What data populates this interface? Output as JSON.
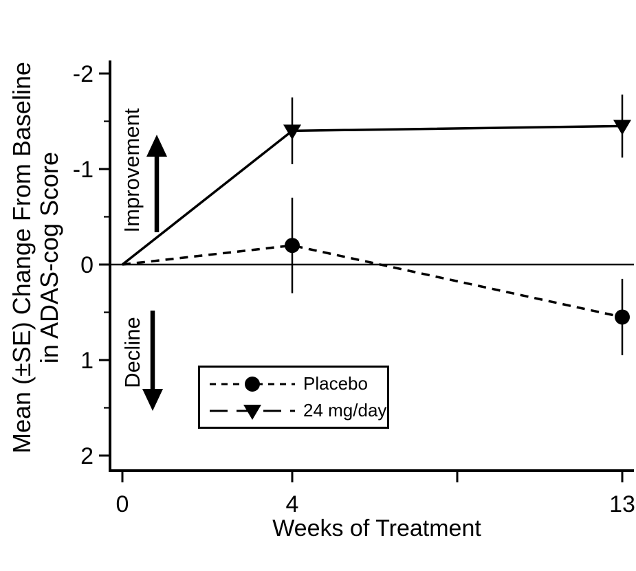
{
  "colors": {
    "foreground": "#000000",
    "background": "#ffffff"
  },
  "chart_data": {
    "type": "line",
    "title": "",
    "xlabel": "Weeks of Treatment",
    "ylabel": "Mean (±SE) Change From Baseline in ADAS-cog Score",
    "ylabel_line1": "Mean (±SE) Change From Baseline",
    "ylabel_line2": "in ADAS-cog Score",
    "y_axis_inverted": true,
    "ylim": [
      -2,
      2
    ],
    "y_ticks": [
      -2,
      -1,
      0,
      1,
      2
    ],
    "y_minor_ticks": [
      -1.5,
      -0.5,
      0.5,
      1.5
    ],
    "x_ticks": [
      {
        "week": 0,
        "label": "0"
      },
      {
        "week": 4,
        "label": "4"
      },
      {
        "week": null,
        "label": ""
      },
      {
        "week": 13,
        "label": "13"
      }
    ],
    "zero_line": true,
    "grid": false,
    "legend_position": "inside-lower-left",
    "annotations": {
      "improvement": "Improvement",
      "decline": "Decline"
    },
    "series": [
      {
        "name": "Placebo",
        "slug": "placebo",
        "marker": "circle",
        "line": "dashed",
        "legend_line": "dashed",
        "x": [
          0,
          4,
          13
        ],
        "y": [
          0,
          -0.2,
          0.55
        ],
        "se": [
          0,
          0.5,
          0.4
        ]
      },
      {
        "name": "24 mg/day",
        "slug": "drug-24mg-day",
        "marker": "triangle-down",
        "line": "solid",
        "legend_line": "long-dash",
        "x": [
          0,
          4,
          13
        ],
        "y": [
          0,
          -1.4,
          -1.45
        ],
        "se": [
          0,
          0.35,
          0.33
        ]
      }
    ]
  }
}
